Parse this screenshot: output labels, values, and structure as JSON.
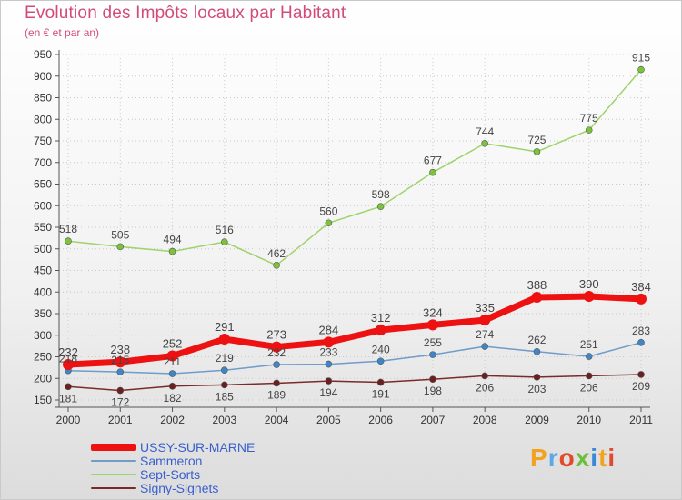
{
  "header": {
    "title": "Evolution des Impôts locaux par Habitant",
    "subtitle": "(en € et par an)"
  },
  "logo": {
    "text": "Proxiti",
    "colors": [
      "#f2a21f",
      "#5aa9e6",
      "#e24a2a",
      "#6cbf3c",
      "#3a88d6",
      "#f2a21f",
      "#e24a2a"
    ]
  },
  "chart_data": {
    "type": "line",
    "x": [
      "2000",
      "2001",
      "2002",
      "2003",
      "2004",
      "2005",
      "2006",
      "2007",
      "2008",
      "2009",
      "2010",
      "2011"
    ],
    "ylim": [
      150,
      950
    ],
    "yticks": [
      150,
      200,
      250,
      300,
      350,
      400,
      450,
      500,
      550,
      600,
      650,
      700,
      750,
      800,
      850,
      900,
      950
    ],
    "grid": true,
    "legend_placement": "bottom-left",
    "series": [
      {
        "name": "USSY-SUR-MARNE",
        "color": "#ee1111",
        "marker": "#ee1111",
        "values": [
          232,
          238,
          252,
          291,
          273,
          284,
          312,
          324,
          335,
          388,
          390,
          384
        ]
      },
      {
        "name": "Sammeron",
        "color": "#6f9cc8",
        "marker": "#3f86c9",
        "values": [
          218,
          215,
          211,
          219,
          232,
          233,
          240,
          255,
          274,
          262,
          251,
          283
        ]
      },
      {
        "name": "Sept-Sorts",
        "color": "#9ed36d",
        "marker": "#7cc33b",
        "values": [
          518,
          505,
          494,
          516,
          462,
          560,
          598,
          677,
          744,
          725,
          775,
          915
        ]
      },
      {
        "name": "Signy-Signets",
        "color": "#7a2a2a",
        "marker": "#6b1f1f",
        "values": [
          181,
          172,
          182,
          185,
          189,
          194,
          191,
          198,
          206,
          203,
          206,
          209
        ]
      }
    ]
  }
}
